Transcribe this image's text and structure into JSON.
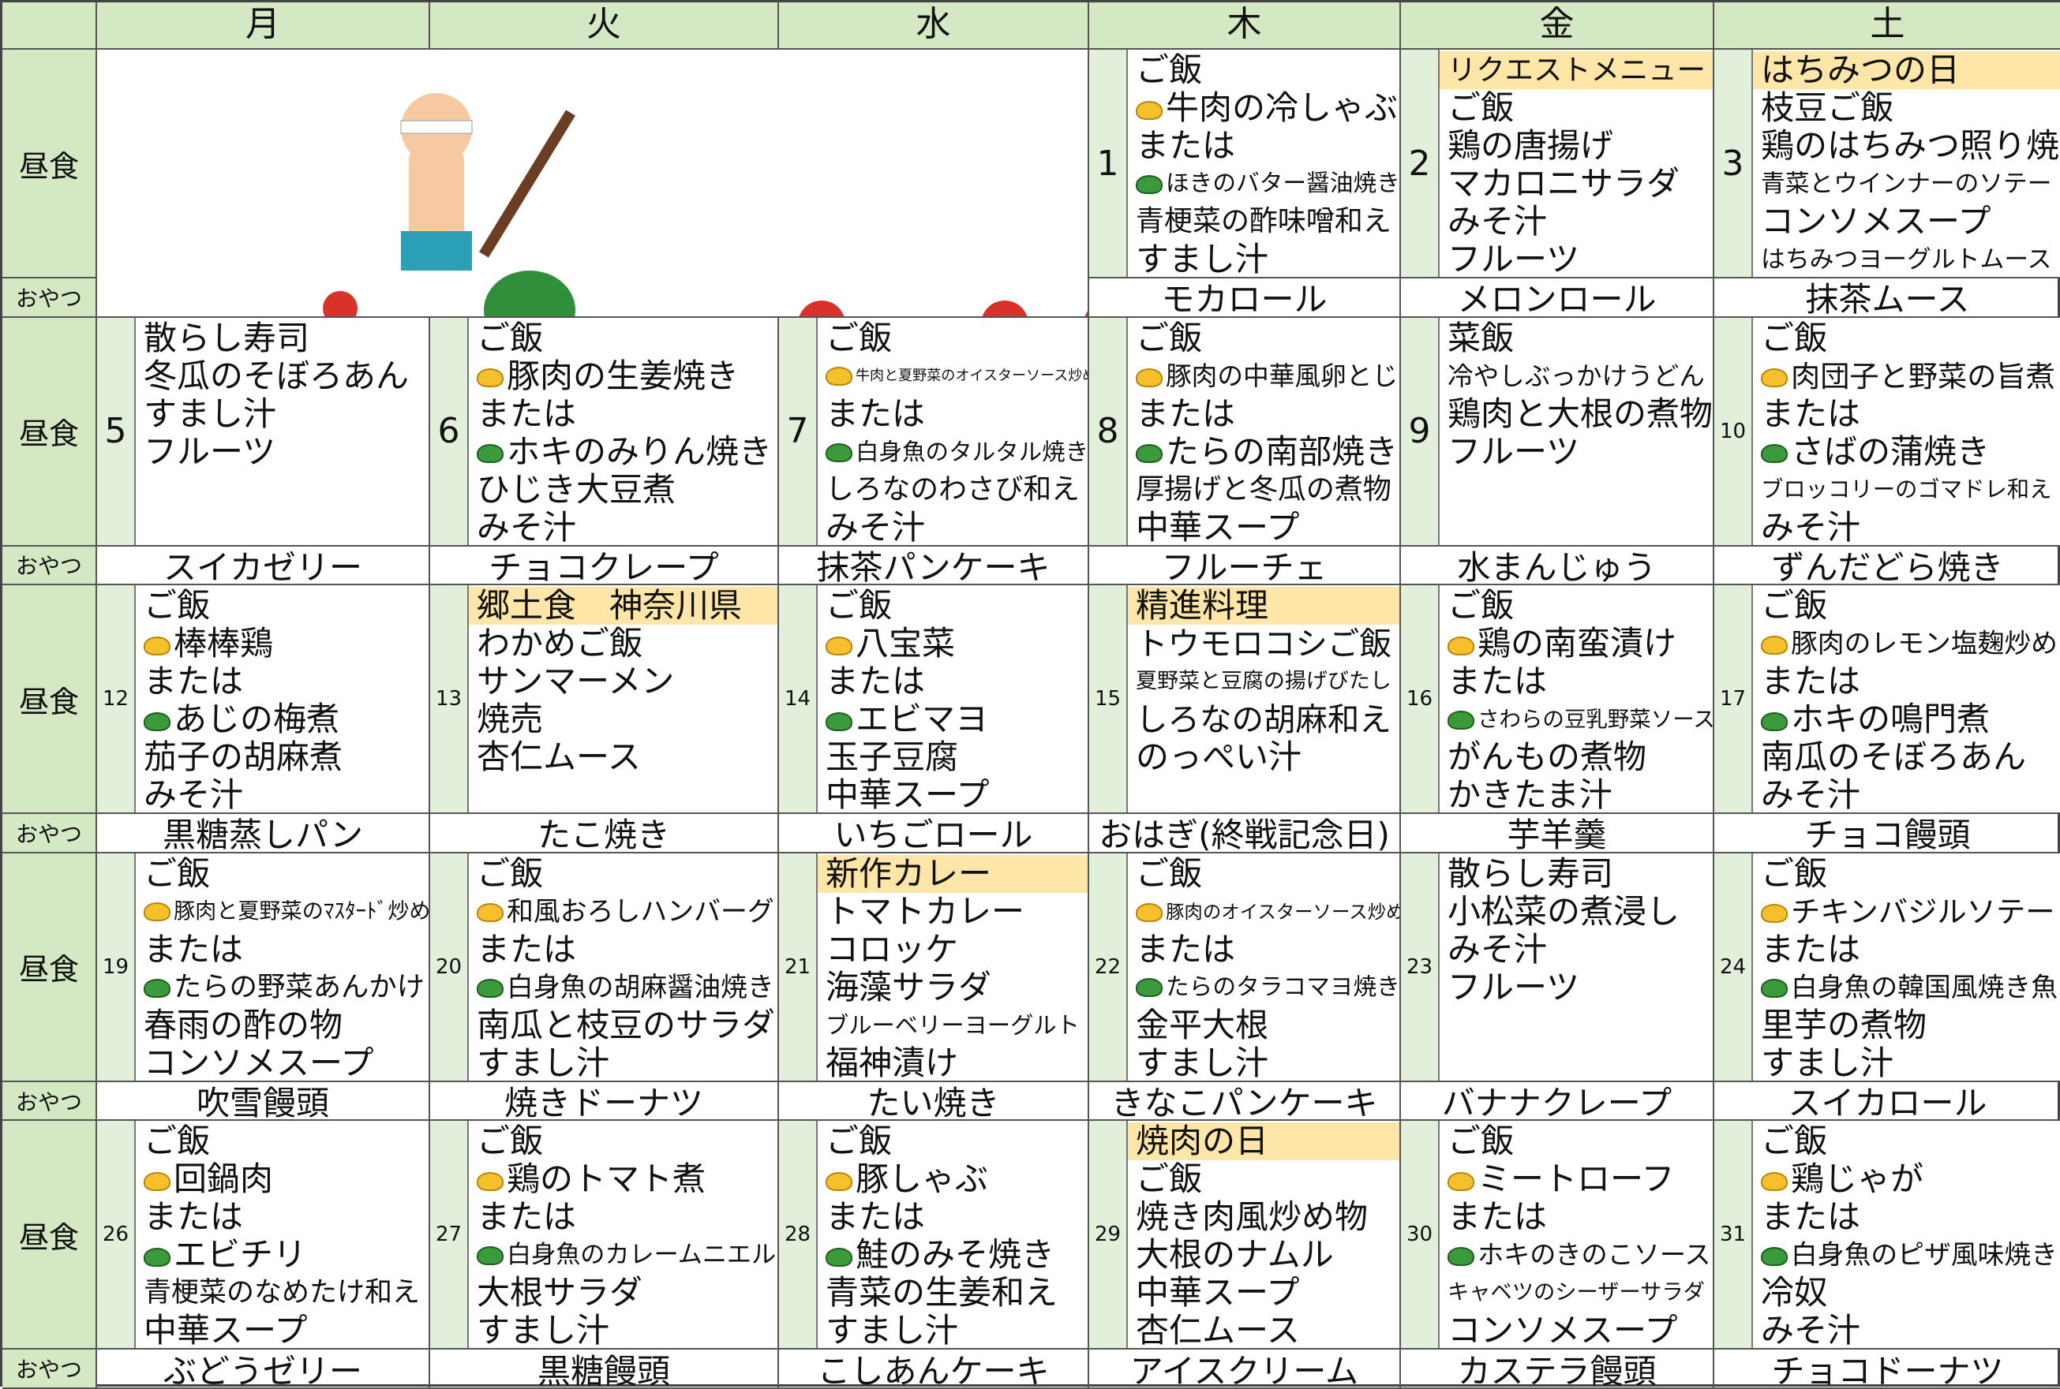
{
  "labels": {
    "lunch": "昼食",
    "snack": "おやつ"
  },
  "header": {
    "days": [
      "月",
      "火",
      "水",
      "木",
      "金",
      "土"
    ]
  },
  "weeks": [
    {
      "days": [
        null,
        null,
        null,
        {
          "date": 1,
          "items": [
            "ご飯",
            {
              "text": "牛肉の冷しゃぶ",
              "icon": "yellow"
            },
            "または",
            {
              "text": "ほきのバター醤油焼き",
              "icon": "green"
            },
            "青梗菜の酢味噌和え",
            "すまし汁"
          ],
          "snack": "モカロール"
        },
        {
          "date": 2,
          "theme": "リクエストメニュー",
          "items": [
            "ご飯",
            "鶏の唐揚げ",
            "マカロニサラダ",
            "みそ汁",
            "フルーツ"
          ],
          "snack": "メロンロール"
        },
        {
          "date": 3,
          "theme": "はちみつの日",
          "items": [
            "枝豆ご飯",
            "鶏のはちみつ照り焼",
            "青菜とウインナーのソテー",
            "コンソメスープ",
            "はちみつヨーグルトムース"
          ],
          "snack": "抹茶ムース"
        }
      ]
    },
    {
      "days": [
        {
          "date": 5,
          "items": [
            "散らし寿司",
            "冬瓜のそぼろあん",
            "すまし汁",
            "フルーツ"
          ],
          "snack": "スイカゼリー"
        },
        {
          "date": 6,
          "items": [
            "ご飯",
            {
              "text": "豚肉の生姜焼き",
              "icon": "yellow"
            },
            "または",
            {
              "text": "ホキのみりん焼き",
              "icon": "green"
            },
            "ひじき大豆煮",
            "みそ汁"
          ],
          "snack": "チョコクレープ"
        },
        {
          "date": 7,
          "items": [
            "ご飯",
            {
              "text": "牛肉と夏野菜のオイスターソース炒め",
              "icon": "yellow"
            },
            "または",
            {
              "text": "白身魚のタルタル焼き",
              "icon": "green"
            },
            "しろなのわさび和え",
            "みそ汁"
          ],
          "snack": "抹茶パンケーキ"
        },
        {
          "date": 8,
          "items": [
            "ご飯",
            {
              "text": "豚肉の中華風卵とじ",
              "icon": "yellow"
            },
            "または",
            {
              "text": "たらの南部焼き",
              "icon": "green"
            },
            "厚揚げと冬瓜の煮物",
            "中華スープ"
          ],
          "snack": "フルーチェ"
        },
        {
          "date": 9,
          "items": [
            "菜飯",
            "冷やしぶっかけうどん",
            "鶏肉と大根の煮物",
            "フルーツ"
          ],
          "snack": "水まんじゅう"
        },
        {
          "date": 10,
          "items": [
            "ご飯",
            {
              "text": "肉団子と野菜の旨煮",
              "icon": "yellow"
            },
            "または",
            {
              "text": "さばの蒲焼き",
              "icon": "green"
            },
            "ブロッコリーのゴマドレ和え",
            "みそ汁"
          ],
          "snack": "ずんだどら焼き"
        }
      ]
    },
    {
      "days": [
        {
          "date": 12,
          "items": [
            "ご飯",
            {
              "text": "棒棒鶏",
              "icon": "yellow"
            },
            "または",
            {
              "text": "あじの梅煮",
              "icon": "green"
            },
            "茄子の胡麻煮",
            "みそ汁"
          ],
          "snack": "黒糖蒸しパン"
        },
        {
          "date": 13,
          "theme": "郷土食　神奈川県",
          "items": [
            "わかめご飯",
            "サンマーメン",
            "焼売",
            "杏仁ムース"
          ],
          "snack": "たこ焼き"
        },
        {
          "date": 14,
          "items": [
            "ご飯",
            {
              "text": "八宝菜",
              "icon": "yellow"
            },
            "または",
            {
              "text": "エビマヨ",
              "icon": "green"
            },
            "玉子豆腐",
            "中華スープ"
          ],
          "snack": "いちごロール"
        },
        {
          "date": 15,
          "theme": "精進料理",
          "items": [
            "トウモロコシご飯",
            "夏野菜と豆腐の揚げびたし",
            "しろなの胡麻和え",
            "のっぺい汁"
          ],
          "snack": "おはぎ(終戦記念日)"
        },
        {
          "date": 16,
          "items": [
            "ご飯",
            {
              "text": "鶏の南蛮漬け",
              "icon": "yellow"
            },
            "または",
            {
              "text": "さわらの豆乳野菜ソース",
              "icon": "green"
            },
            "がんもの煮物",
            "かきたま汁"
          ],
          "snack": "芋羊羹"
        },
        {
          "date": 17,
          "items": [
            "ご飯",
            {
              "text": "豚肉のレモン塩麹炒め",
              "icon": "yellow"
            },
            "または",
            {
              "text": "ホキの鳴門煮",
              "icon": "green"
            },
            "南瓜のそぼろあん",
            "みそ汁"
          ],
          "snack": "チョコ饅頭"
        }
      ]
    },
    {
      "days": [
        {
          "date": 19,
          "items": [
            "ご飯",
            {
              "text": "豚肉と夏野菜のﾏｽﾀｰﾄﾞ炒め",
              "icon": "yellow"
            },
            "または",
            {
              "text": "たらの野菜あんかけ",
              "icon": "green"
            },
            "春雨の酢の物",
            "コンソメスープ"
          ],
          "snack": "吹雪饅頭"
        },
        {
          "date": 20,
          "items": [
            "ご飯",
            {
              "text": "和風おろしハンバーグ",
              "icon": "yellow"
            },
            "または",
            {
              "text": "白身魚の胡麻醤油焼き",
              "icon": "green"
            },
            "南瓜と枝豆のサラダ",
            "すまし汁"
          ],
          "snack": "焼きドーナツ"
        },
        {
          "date": 21,
          "theme": "新作カレー",
          "items": [
            "トマトカレー",
            "コロッケ",
            "海藻サラダ",
            "ブルーベリーヨーグルト",
            "福神漬け"
          ],
          "snack": "たい焼き"
        },
        {
          "date": 22,
          "items": [
            "ご飯",
            {
              "text": "豚肉のオイスターソース炒め",
              "icon": "yellow"
            },
            "または",
            {
              "text": "たらのタラコマヨ焼き",
              "icon": "green"
            },
            "金平大根",
            "すまし汁"
          ],
          "snack": "きなこパンケーキ"
        },
        {
          "date": 23,
          "items": [
            "散らし寿司",
            "小松菜の煮浸し",
            "みそ汁",
            "フルーツ"
          ],
          "snack": "バナナクレープ"
        },
        {
          "date": 24,
          "items": [
            "ご飯",
            {
              "text": "チキンバジルソテー",
              "icon": "yellow"
            },
            "または",
            {
              "text": "白身魚の韓国風焼き魚",
              "icon": "green"
            },
            "里芋の煮物",
            "すまし汁"
          ],
          "snack": "スイカロール"
        }
      ]
    },
    {
      "days": [
        {
          "date": 26,
          "items": [
            "ご飯",
            {
              "text": "回鍋肉",
              "icon": "yellow"
            },
            "または",
            {
              "text": "エビチリ",
              "icon": "green"
            },
            "青梗菜のなめたけ和え",
            "中華スープ"
          ],
          "snack": "ぶどうゼリー"
        },
        {
          "date": 27,
          "items": [
            "ご飯",
            {
              "text": "鶏のトマト煮",
              "icon": "yellow"
            },
            "または",
            {
              "text": "白身魚のカレームニエル",
              "icon": "green"
            },
            "大根サラダ",
            "すまし汁"
          ],
          "snack": "黒糖饅頭"
        },
        {
          "date": 28,
          "items": [
            "ご飯",
            {
              "text": "豚しゃぶ",
              "icon": "yellow"
            },
            "または",
            {
              "text": "鮭のみそ焼き",
              "icon": "green"
            },
            "青菜の生姜和え",
            "すまし汁"
          ],
          "snack": "こしあんケーキ"
        },
        {
          "date": 29,
          "theme": "焼肉の日",
          "items": [
            "ご飯",
            "焼き肉風炒め物",
            "大根のナムル",
            "中華スープ",
            "杏仁ムース"
          ],
          "snack": "アイスクリーム"
        },
        {
          "date": 30,
          "items": [
            "ご飯",
            {
              "text": "ミートローフ",
              "icon": "yellow"
            },
            "または",
            {
              "text": "ホキのきのこソース",
              "icon": "green"
            },
            "キャベツのシーザーサラダ",
            "コンソメスープ"
          ],
          "snack": "カステラ饅頭"
        },
        {
          "date": 31,
          "items": [
            "ご飯",
            {
              "text": "鶏じゃが",
              "icon": "yellow"
            },
            "または",
            {
              "text": "白身魚のピザ風味焼き",
              "icon": "green"
            },
            "冷奴",
            "みそ汁"
          ],
          "snack": "チョコドーナツ"
        }
      ]
    }
  ]
}
